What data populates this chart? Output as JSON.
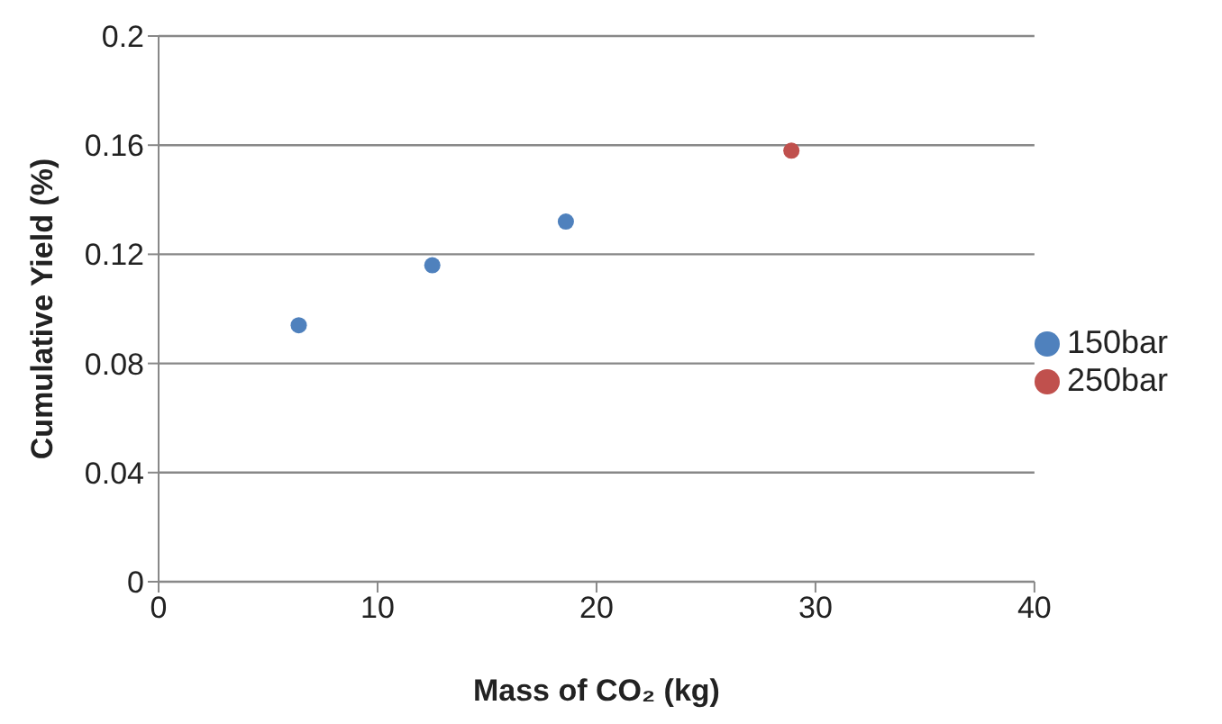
{
  "chart_data": {
    "type": "scatter",
    "xlabel": "Mass of CO₂ (kg)",
    "ylabel": "Cumulative Yield (%)",
    "xlim": [
      0,
      40
    ],
    "xticks": [
      0,
      10,
      20,
      30,
      40
    ],
    "ylim": [
      0,
      0.2
    ],
    "yticks": [
      0,
      0.04,
      0.08,
      0.12,
      0.16,
      0.2
    ],
    "grid": "y",
    "legend": "right",
    "marker": "circle",
    "series": [
      {
        "name": "150bar",
        "color": "#4f81bd",
        "x": [
          6.4,
          12.5,
          18.6
        ],
        "values": [
          0.094,
          0.116,
          0.132
        ]
      },
      {
        "name": "250bar",
        "color": "#c0504d",
        "x": [
          28.9
        ],
        "values": [
          0.158
        ]
      }
    ]
  }
}
